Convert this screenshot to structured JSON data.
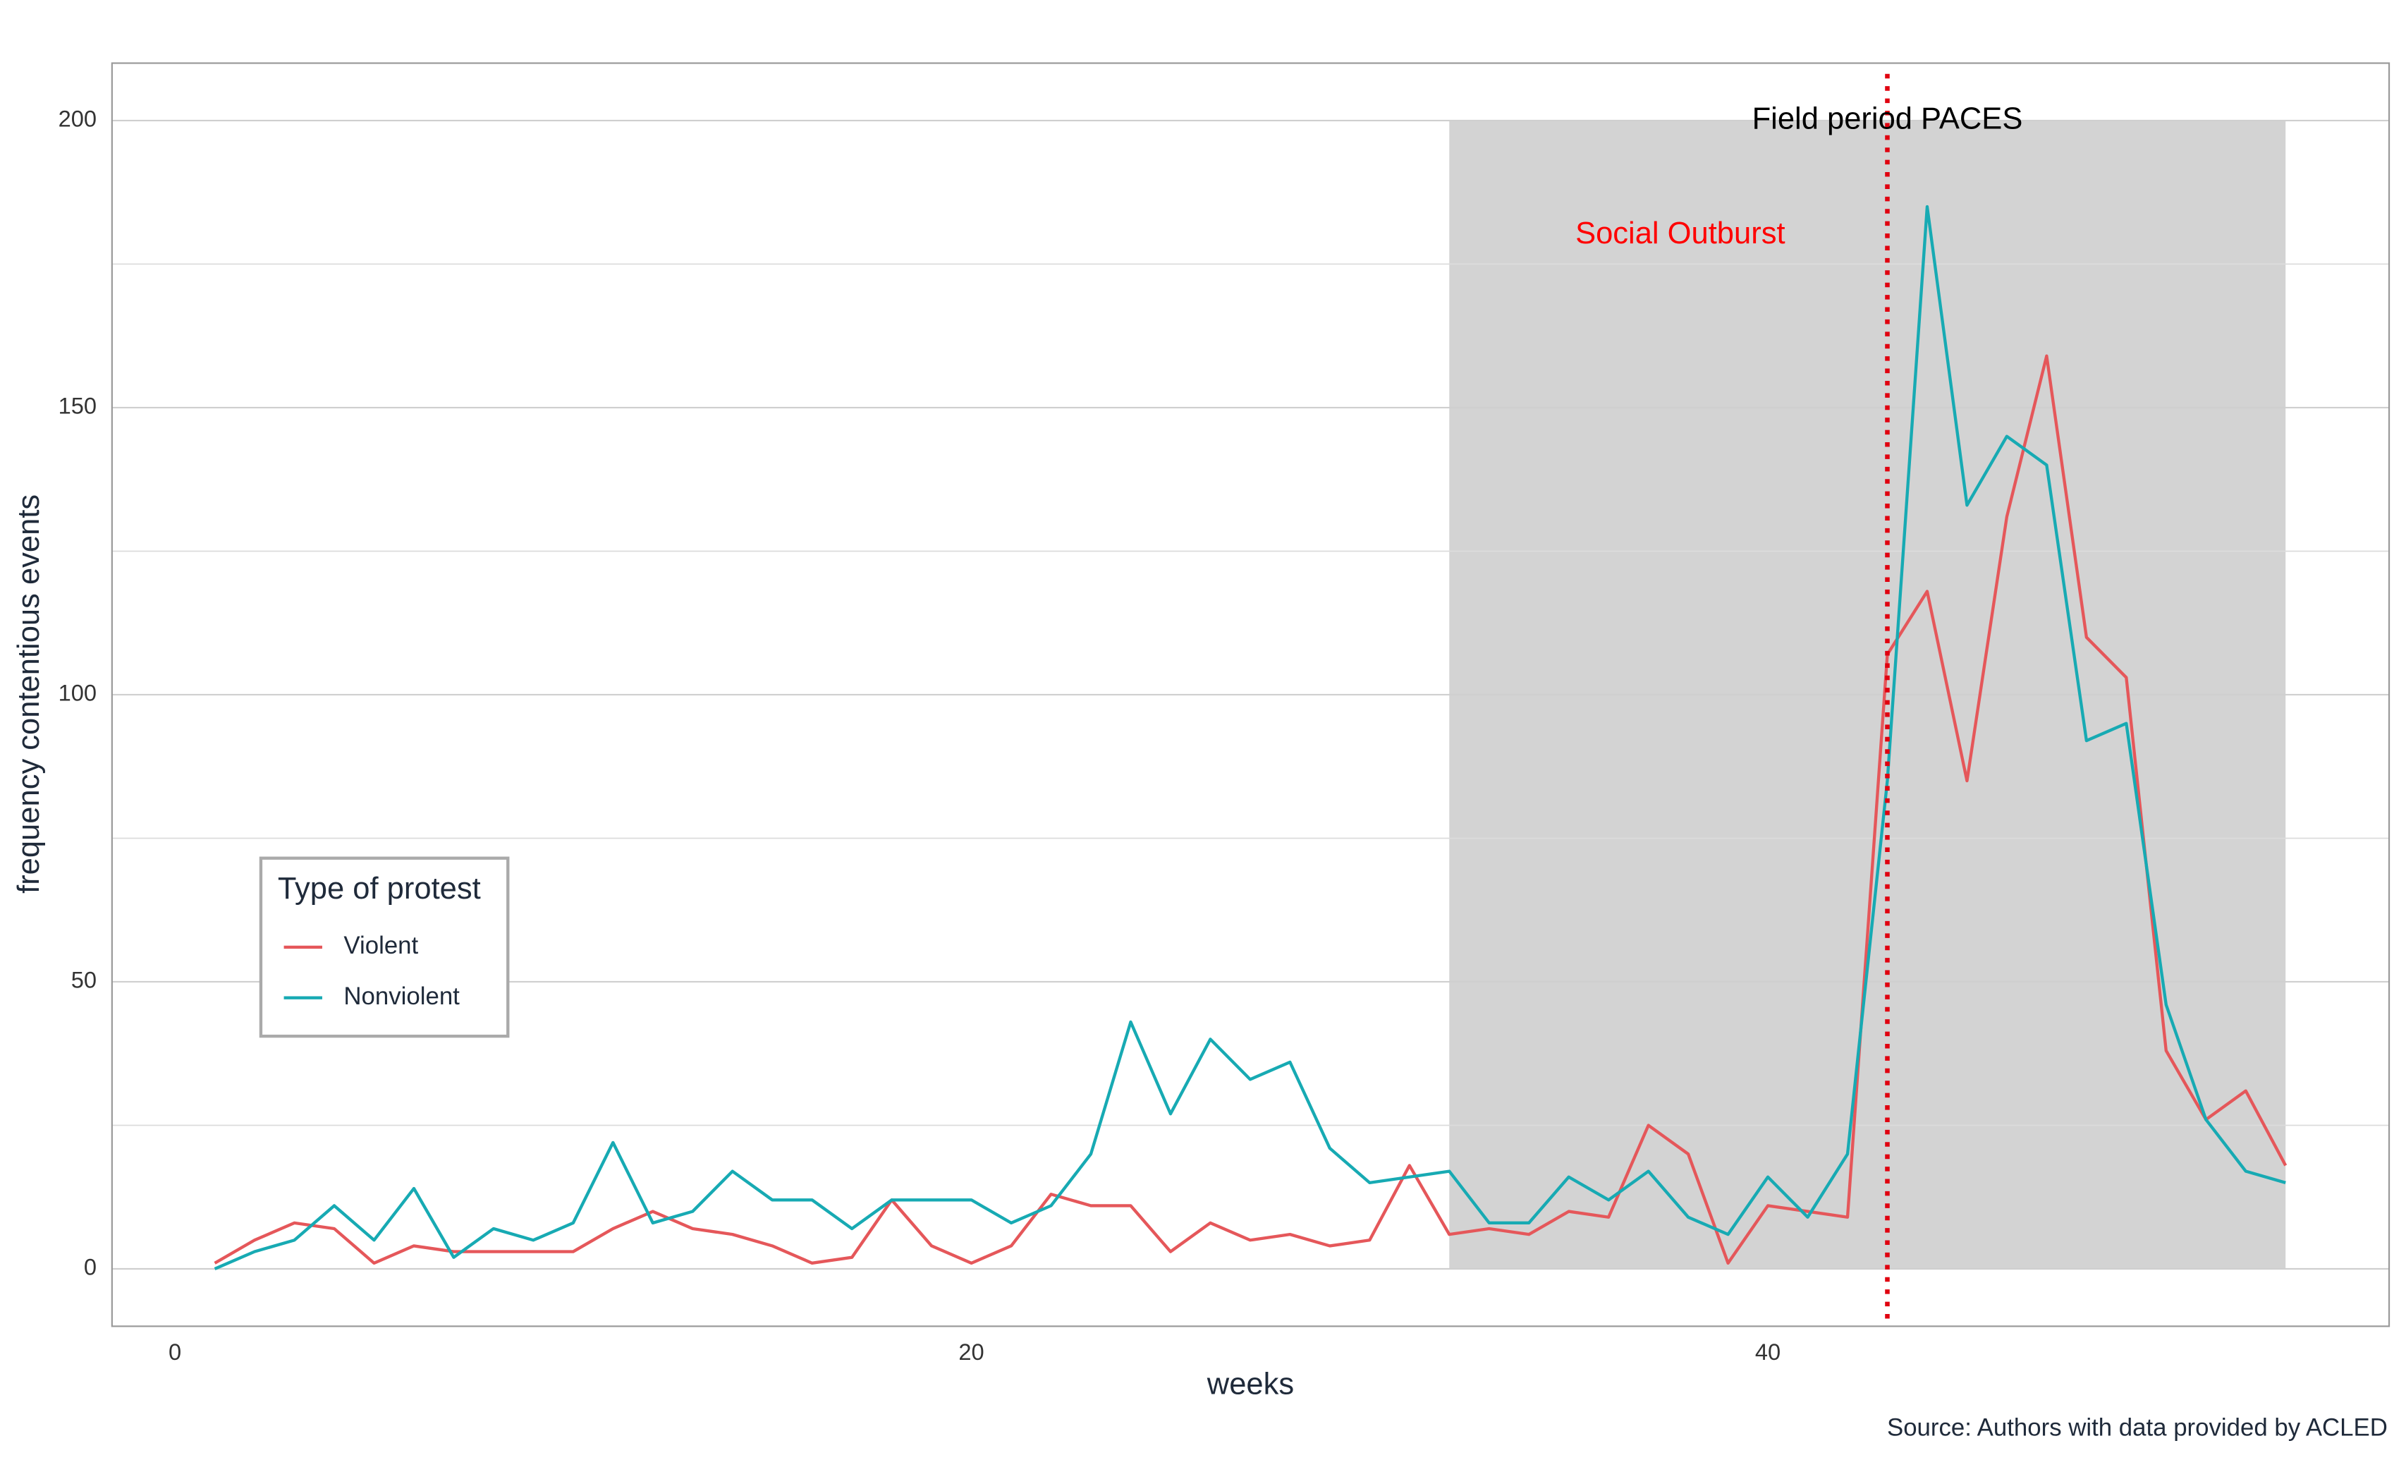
{
  "chart_data": {
    "type": "line",
    "x_label": "weeks",
    "y_label": "frequency contentious events",
    "caption": "Source: Authors with data provided by ACLED",
    "legend_title": "Type of protest",
    "legend_position": "left",
    "x": [
      1,
      2,
      3,
      4,
      5,
      6,
      7,
      8,
      9,
      10,
      11,
      12,
      13,
      14,
      15,
      16,
      17,
      18,
      19,
      20,
      21,
      22,
      23,
      24,
      25,
      26,
      27,
      28,
      29,
      30,
      31,
      32,
      33,
      34,
      35,
      36,
      37,
      38,
      39,
      40,
      41,
      42,
      43,
      44,
      45,
      46,
      47,
      48,
      49,
      50,
      51,
      52,
      53
    ],
    "series": [
      {
        "name": "Violent",
        "color": "#e5575a",
        "values": [
          1,
          5,
          8,
          7,
          1,
          4,
          3,
          3,
          3,
          3,
          7,
          10,
          7,
          6,
          4,
          1,
          2,
          12,
          4,
          1,
          4,
          13,
          11,
          11,
          3,
          8,
          5,
          6,
          4,
          5,
          18,
          6,
          7,
          6,
          10,
          9,
          25,
          20,
          1,
          11,
          10,
          9,
          107,
          118,
          85,
          131,
          159,
          110,
          103,
          38,
          26,
          31,
          18
        ]
      },
      {
        "name": "Nonviolent",
        "color": "#17aab3",
        "values": [
          0,
          3,
          5,
          11,
          5,
          14,
          2,
          7,
          5,
          8,
          22,
          8,
          10,
          17,
          12,
          12,
          7,
          12,
          12,
          12,
          8,
          11,
          20,
          43,
          27,
          40,
          33,
          36,
          21,
          15,
          16,
          17,
          8,
          8,
          16,
          12,
          17,
          9,
          6,
          16,
          9,
          20,
          85,
          185,
          133,
          145,
          140,
          92,
          95,
          46,
          26,
          17,
          15
        ]
      }
    ],
    "xlim": [
      -1.58,
      55.6
    ],
    "ylim": [
      -10,
      210
    ],
    "xticks": [
      0,
      20,
      40
    ],
    "yticks": [
      0,
      50,
      100,
      150,
      200
    ],
    "minor_yticks": [
      25,
      75,
      125,
      175
    ],
    "grid": true,
    "shaded_region": {
      "x": [
        32,
        53
      ],
      "y": [
        0,
        200
      ],
      "color": "#d3d3d3"
    },
    "vline": {
      "x": 43,
      "color": "#e0000f",
      "label": "Field period PACES"
    },
    "annotation": {
      "text": "Social Outburst",
      "color": "#ff0000",
      "x": 37.8,
      "y": 180
    }
  }
}
